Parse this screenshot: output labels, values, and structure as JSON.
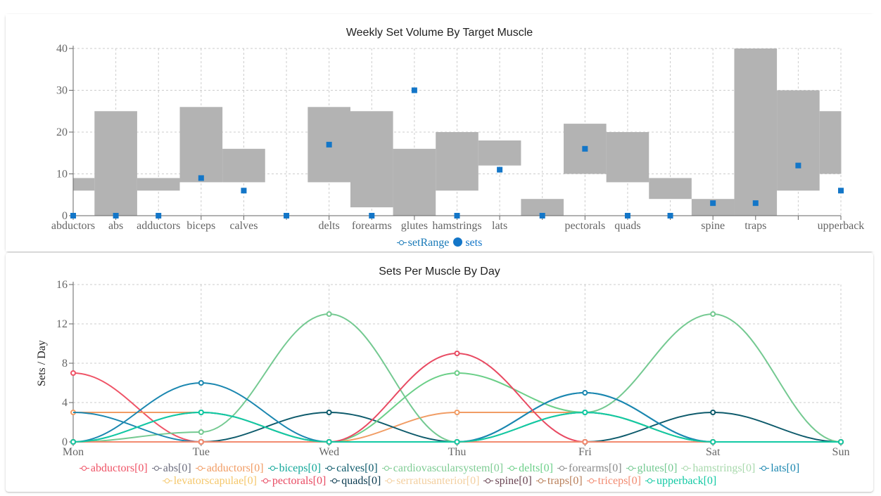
{
  "chart_data": [
    {
      "type": "bar",
      "title": "Weekly Set Volume By Target Muscle",
      "categories": [
        "abductors",
        "abs",
        "adductors",
        "biceps",
        "calves",
        "cardiovascularsystem",
        "delts",
        "forearms",
        "glutes",
        "hamstrings",
        "lats",
        "levatorscapulae",
        "pectorals",
        "quads",
        "serratusanterior",
        "spine",
        "traps",
        "triceps",
        "upperback"
      ],
      "tick_labels": [
        "abductors",
        "abs",
        "adductors",
        "biceps",
        "calves",
        "",
        "delts",
        "forearms",
        "glutes",
        "hamstrings",
        "lats",
        "",
        "pectorals",
        "quads",
        "",
        "spine",
        "traps",
        "",
        "upperback"
      ],
      "ylim": [
        0,
        40
      ],
      "yticks": [
        0,
        10,
        20,
        30,
        40
      ],
      "grid": true,
      "legend_position": "bottom",
      "series": [
        {
          "name": "setRange",
          "type": "range-bar",
          "color": "#b3b3b3",
          "low": [
            6,
            0,
            6,
            8,
            8,
            null,
            8,
            2,
            0,
            6,
            12,
            0,
            10,
            8,
            4,
            0,
            0,
            6,
            10
          ],
          "high": [
            9,
            25,
            9,
            26,
            16,
            null,
            26,
            25,
            16,
            20,
            18,
            4,
            22,
            20,
            9,
            4,
            40,
            30,
            25
          ]
        },
        {
          "name": "sets",
          "type": "scatter",
          "color": "#1376c8",
          "values": [
            0,
            0,
            0,
            9,
            6,
            0,
            17,
            0,
            30,
            0,
            11,
            0,
            16,
            0,
            0,
            3,
            3,
            12,
            6
          ]
        }
      ]
    },
    {
      "type": "line",
      "title": "Sets Per Muscle By Day",
      "ylabel": "Sets / Day",
      "categories": [
        "Mon",
        "Tue",
        "Wed",
        "Thu",
        "Fri",
        "Sat",
        "Sun"
      ],
      "ylim": [
        0,
        16
      ],
      "yticks": [
        0,
        4,
        8,
        12,
        16
      ],
      "grid": true,
      "legend_position": "bottom",
      "series": [
        {
          "name": "abductors[0]",
          "color": "#ef5366",
          "values": [
            7,
            0,
            0,
            0,
            0,
            0,
            0
          ]
        },
        {
          "name": "abs[0]",
          "color": "#6d6e7f",
          "values": [
            0,
            0,
            0,
            0,
            0,
            0,
            0
          ]
        },
        {
          "name": "adductors[0]",
          "color": "#f19c64",
          "values": [
            3,
            3,
            0,
            3,
            3,
            0,
            0
          ]
        },
        {
          "name": "biceps[0]",
          "color": "#14a89a",
          "values": [
            0,
            3,
            0,
            0,
            3,
            0,
            0
          ]
        },
        {
          "name": "calves[0]",
          "color": "#0d5a6b",
          "values": [
            0,
            0,
            3,
            0,
            0,
            3,
            0
          ]
        },
        {
          "name": "cardiovascularsystem[0]",
          "color": "#7fcc94",
          "values": [
            0,
            0,
            0,
            0,
            0,
            0,
            0
          ]
        },
        {
          "name": "delts[0]",
          "color": "#6bcf88",
          "values": [
            0,
            0,
            0,
            7,
            3,
            0,
            0
          ]
        },
        {
          "name": "forearms[0]",
          "color": "#8a8a8a",
          "values": [
            0,
            0,
            0,
            0,
            0,
            0,
            0
          ]
        },
        {
          "name": "glutes[0]",
          "color": "#74c991",
          "values": [
            0,
            1,
            13,
            0,
            3,
            13,
            0
          ]
        },
        {
          "name": "hamstrings[0]",
          "color": "#a9d9ad",
          "values": [
            0,
            0,
            0,
            0,
            0,
            0,
            0
          ]
        },
        {
          "name": "lats[0]",
          "color": "#1b87b0",
          "values": [
            3,
            0,
            0,
            0,
            5,
            0,
            0
          ]
        },
        {
          "name": "levatorscapulae[0]",
          "color": "#f5c76b",
          "values": [
            0,
            0,
            0,
            0,
            0,
            0,
            0
          ]
        },
        {
          "name": "pectorals[0]",
          "color": "#e84a62",
          "values": [
            0,
            0,
            0,
            9,
            0,
            0,
            0
          ]
        },
        {
          "name": "quads[0]",
          "color": "#0a3a4f",
          "values": [
            0,
            0,
            0,
            0,
            0,
            0,
            0
          ]
        },
        {
          "name": "serratusanterior[0]",
          "color": "#f3cfa0",
          "values": [
            0,
            0,
            0,
            0,
            0,
            0,
            0
          ]
        },
        {
          "name": "spine[0]",
          "color": "#6a4452",
          "values": [
            0,
            0,
            0,
            0,
            0,
            0,
            0
          ]
        },
        {
          "name": "traps[0]",
          "color": "#b97e58",
          "values": [
            0,
            0,
            0,
            0,
            0,
            0,
            0
          ]
        },
        {
          "name": "triceps[0]",
          "color": "#f28a70",
          "values": [
            0,
            0,
            0,
            0,
            0,
            0,
            0
          ]
        },
        {
          "name": "upperback[0]",
          "color": "#12c9a4",
          "values": [
            0,
            3,
            0,
            0,
            3,
            0,
            0
          ]
        }
      ],
      "extra_series_values": {
        "lats_tuesday_peak": 6
      }
    }
  ]
}
